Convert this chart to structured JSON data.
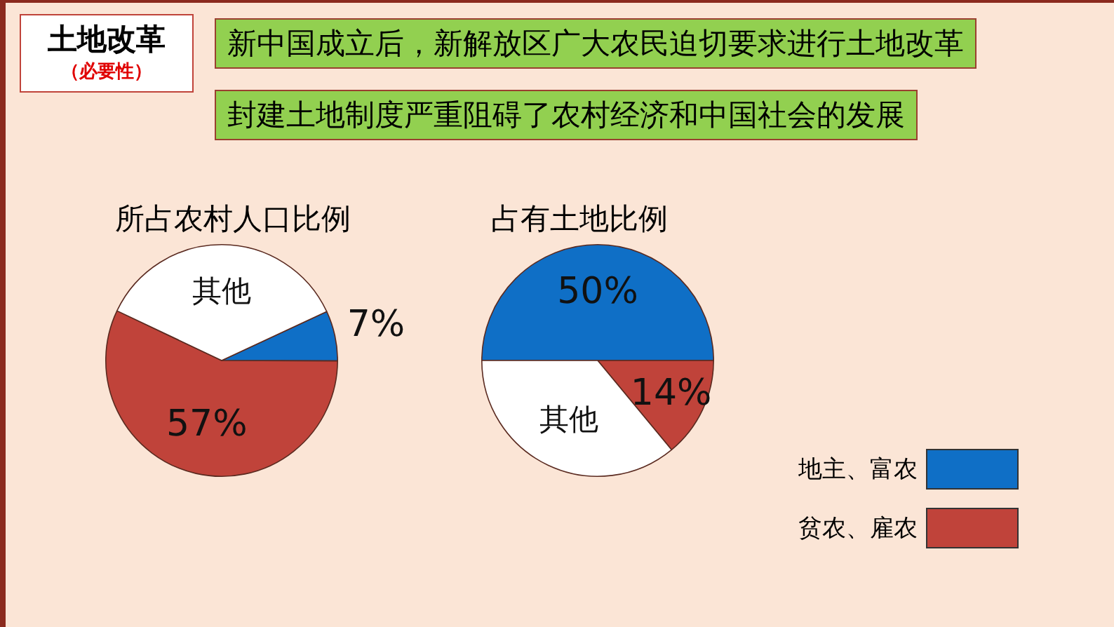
{
  "chart_data": [
    {
      "type": "other",
      "title": "土地改革",
      "subtitle": "（必要性）",
      "annotations": [
        "新中国成立后，新解放区广大农民迫切要求进行土地改革",
        "封建土地制度严重阻碍了农村经济和中国社会的发展"
      ]
    },
    {
      "type": "pie",
      "title": "所占农村人口比例",
      "categories": [
        null,
        null,
        "其他"
      ],
      "values": [
        7,
        57,
        36
      ],
      "colors": [
        "#0f6fc6",
        "#c0433a",
        "#ffffff"
      ],
      "value_labels": [
        "7%",
        "57%",
        null
      ]
    },
    {
      "type": "pie",
      "title": "占有土地比例",
      "categories": [
        "地主、富农",
        "贫农、雇农",
        "其他"
      ],
      "values": [
        50,
        14,
        36
      ],
      "colors": [
        "#0f6fc6",
        "#c0433a",
        "#ffffff"
      ],
      "value_labels": [
        "50%",
        "14%",
        null
      ],
      "legend": "bottom right"
    }
  ]
}
